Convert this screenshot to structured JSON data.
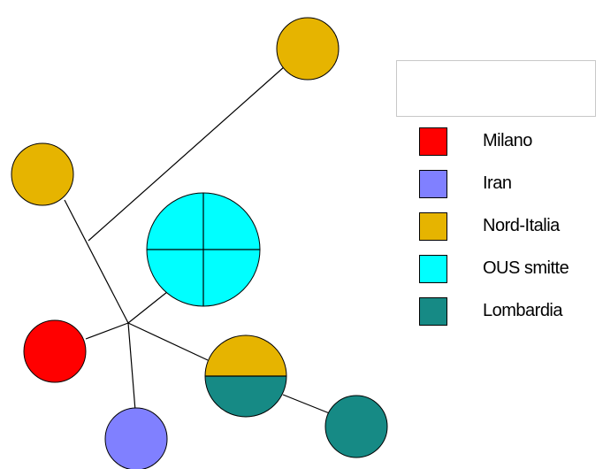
{
  "legend": {
    "items": [
      {
        "label": "Milano",
        "color": "#ff0000"
      },
      {
        "label": "Iran",
        "color": "#8080ff"
      },
      {
        "label": "Nord-Italia",
        "color": "#e6b400"
      },
      {
        "label": "OUS smitte",
        "color": "#00ffff"
      },
      {
        "label": "Lombardia",
        "color": "#168a85"
      }
    ]
  },
  "network": {
    "nodes": [
      {
        "id": "nord-italia-top",
        "group": "Nord-Italia",
        "count": 1
      },
      {
        "id": "nord-italia-left",
        "group": "Nord-Italia",
        "count": 1
      },
      {
        "id": "ous-smitte",
        "group": "OUS smitte",
        "count": 4
      },
      {
        "id": "milano",
        "group": "Milano",
        "count": 1
      },
      {
        "id": "iran",
        "group": "Iran",
        "count": 1
      },
      {
        "id": "nord-italia-lombardia",
        "group": "Nord-Italia + Lombardia",
        "count": 2
      },
      {
        "id": "lombardia",
        "group": "Lombardia",
        "count": 1
      }
    ],
    "edges": [
      [
        "nord-italia-top",
        "junction-upper"
      ],
      [
        "nord-italia-left",
        "junction-center"
      ],
      [
        "ous-smitte",
        "junction-center"
      ],
      [
        "milano",
        "junction-center"
      ],
      [
        "iran",
        "junction-center"
      ],
      [
        "nord-italia-lombardia",
        "junction-center"
      ],
      [
        "nord-italia-lombardia",
        "lombardia"
      ]
    ]
  }
}
